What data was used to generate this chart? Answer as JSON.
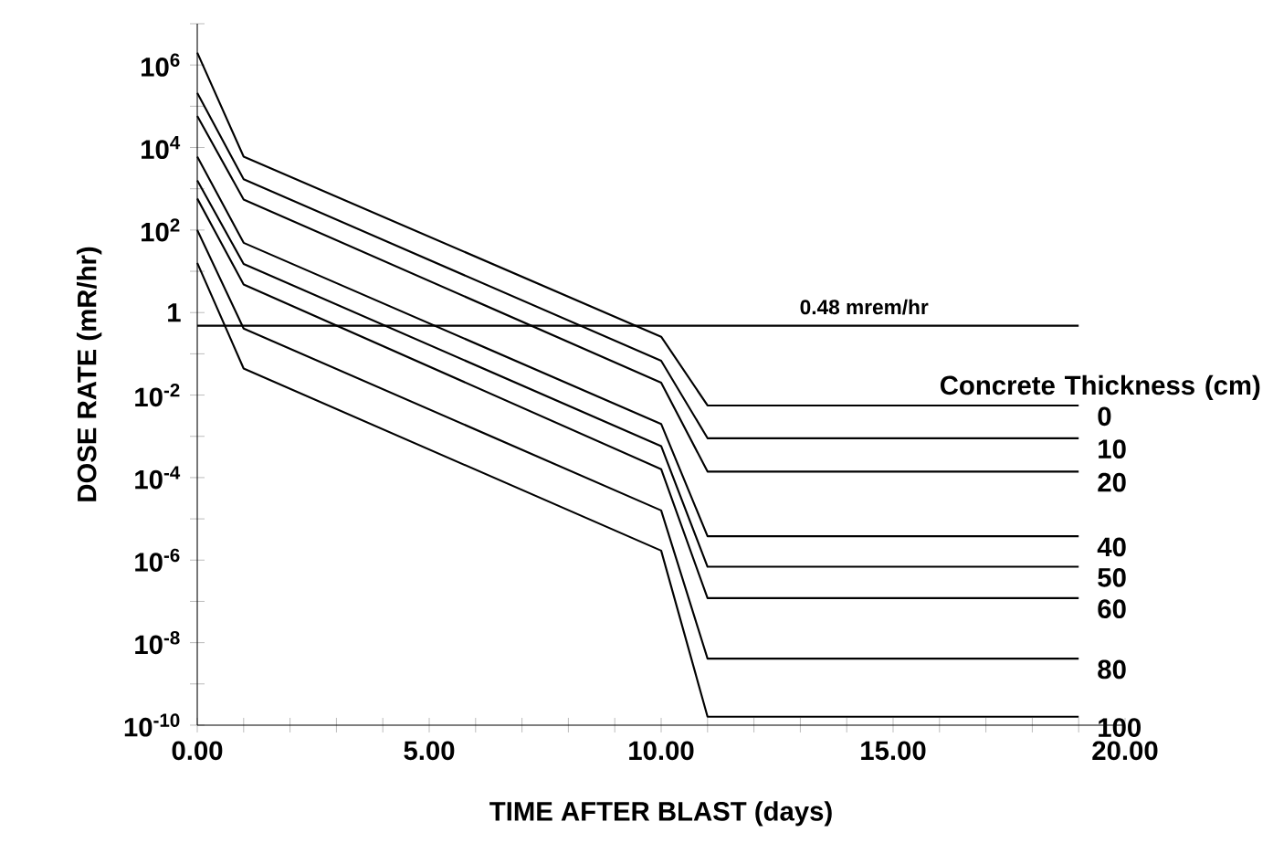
{
  "chart_data": {
    "type": "line",
    "xlabel": "TIME AFTER BLAST (days)",
    "ylabel": "DOSE RATE (mR/hr)",
    "legend_title": "Concrete Thickness (cm)",
    "x": [
      0,
      1,
      10,
      11,
      19
    ],
    "series": [
      {
        "name": "0",
        "color": "#000000",
        "values": [
          2000000.0,
          6000.0,
          0.26,
          0.0056,
          0.0056
        ]
      },
      {
        "name": "10",
        "color": "#000000",
        "values": [
          210000.0,
          1700.0,
          0.068,
          0.0009,
          0.0009
        ]
      },
      {
        "name": "20",
        "color": "#000000",
        "values": [
          58000.0,
          550,
          0.02,
          0.00014,
          0.00014
        ]
      },
      {
        "name": "40",
        "color": "#000000",
        "values": [
          6000.0,
          49,
          0.002,
          3.8e-06,
          3.8e-06
        ]
      },
      {
        "name": "50",
        "color": "#000000",
        "values": [
          1600.0,
          15,
          0.00058,
          6.9e-07,
          6.9e-07
        ]
      },
      {
        "name": "60",
        "color": "#000000",
        "values": [
          580,
          4.8,
          0.00016,
          1.2e-07,
          1.2e-07
        ]
      },
      {
        "name": "80",
        "color": "#000000",
        "values": [
          100,
          0.41,
          1.6e-05,
          4.1e-09,
          4.1e-09
        ]
      },
      {
        "name": "100",
        "color": "#000000",
        "values": [
          16,
          0.044,
          1.7e-06,
          1.6e-10,
          1.6e-10
        ]
      }
    ],
    "log": "y",
    "xlim": [
      0,
      20
    ],
    "ylim": [
      1e-10,
      10000000.0
    ],
    "xticks": [
      {
        "value": 0,
        "label": "0.00"
      },
      {
        "value": 1,
        "label": null
      },
      {
        "value": 2,
        "label": null
      },
      {
        "value": 3,
        "label": null
      },
      {
        "value": 4,
        "label": null
      },
      {
        "value": 5,
        "label": "5.00"
      },
      {
        "value": 6,
        "label": null
      },
      {
        "value": 7,
        "label": null
      },
      {
        "value": 8,
        "label": null
      },
      {
        "value": 9,
        "label": null
      },
      {
        "value": 10,
        "label": "10.00"
      },
      {
        "value": 11,
        "label": null
      },
      {
        "value": 12,
        "label": null
      },
      {
        "value": 13,
        "label": null
      },
      {
        "value": 14,
        "label": null
      },
      {
        "value": 15,
        "label": "15.00"
      },
      {
        "value": 16,
        "label": null
      },
      {
        "value": 17,
        "label": null
      },
      {
        "value": 18,
        "label": null
      },
      {
        "value": 19,
        "label": null
      },
      {
        "value": 20,
        "label": "20.00"
      }
    ],
    "yticks": [
      {
        "value": 1e-10,
        "label": "10$^{-10}$"
      },
      {
        "value": 1e-09,
        "label": null
      },
      {
        "value": 1e-08,
        "label": "10$^{-8}$"
      },
      {
        "value": 1e-07,
        "label": null
      },
      {
        "value": 1e-06,
        "label": "10$^{-6}$"
      },
      {
        "value": 1e-05,
        "label": null
      },
      {
        "value": 0.0001,
        "label": "10$^{-4}$"
      },
      {
        "value": 0.001,
        "label": null
      },
      {
        "value": 0.01,
        "label": "10$^{-2}$"
      },
      {
        "value": 0.1,
        "label": null
      },
      {
        "value": 1,
        "label": "1"
      },
      {
        "value": 10,
        "label": null
      },
      {
        "value": 100,
        "label": "10$^{2}$"
      },
      {
        "value": 1000,
        "label": null
      },
      {
        "value": 10000.0,
        "label": "10$^{4}$"
      },
      {
        "value": 100000.0,
        "label": null
      },
      {
        "value": 1000000.0,
        "label": "10$^{6}$"
      },
      {
        "value": 10000000.0,
        "label": null
      }
    ],
    "ref_lines": [
      {
        "axis": "y",
        "value": 0.48,
        "label": "0.48 mrem/hr"
      }
    ]
  }
}
